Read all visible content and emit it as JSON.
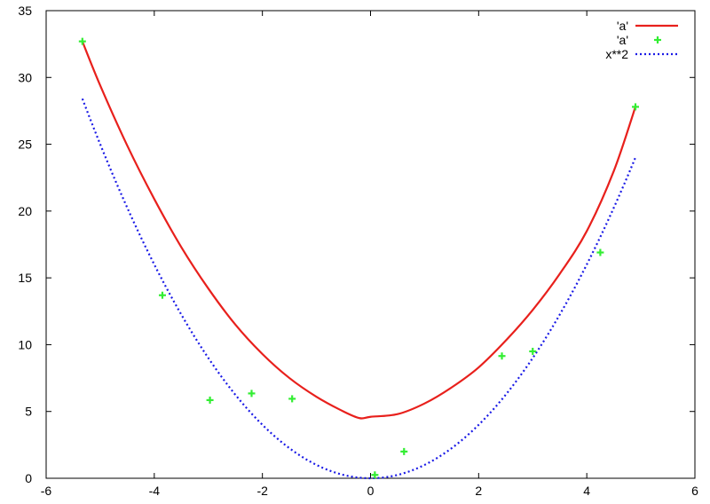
{
  "chart_data": {
    "type": "line",
    "title": "",
    "xlabel": "",
    "ylabel": "",
    "xlim": [
      -6,
      6
    ],
    "ylim": [
      0,
      35
    ],
    "x_ticks": [
      -6,
      -4,
      -2,
      0,
      2,
      4,
      6
    ],
    "y_ticks": [
      0,
      5,
      10,
      15,
      20,
      25,
      30,
      35
    ],
    "grid": false,
    "legend_position": "top-right",
    "series": [
      {
        "name": "'a'",
        "kind": "line",
        "style": "solid",
        "color": "#e8201c",
        "x": [
          -5.33,
          -5.0,
          -4.5,
          -4.0,
          -3.5,
          -3.0,
          -2.5,
          -2.0,
          -1.5,
          -1.0,
          -0.5,
          -0.2,
          0.0,
          0.5,
          1.0,
          1.5,
          2.0,
          2.5,
          3.0,
          3.5,
          4.0,
          4.5,
          4.9
        ],
        "y": [
          32.7,
          29.4,
          24.9,
          20.9,
          17.3,
          14.2,
          11.5,
          9.3,
          7.5,
          6.1,
          5.0,
          4.5,
          4.6,
          4.8,
          5.6,
          6.8,
          8.3,
          10.3,
          12.6,
          15.3,
          18.5,
          23.0,
          27.8
        ]
      },
      {
        "name": "'a'",
        "kind": "points",
        "marker": "plus",
        "color": "#33ee33",
        "x": [
          -5.33,
          -3.85,
          -2.97,
          -2.2,
          -1.45,
          0.08,
          0.62,
          2.43,
          3.0,
          4.25,
          4.9
        ],
        "y": [
          32.7,
          13.7,
          5.85,
          6.35,
          5.95,
          0.25,
          2.0,
          9.15,
          9.5,
          16.9,
          27.8
        ]
      },
      {
        "name": "x**2",
        "kind": "line",
        "style": "dotted",
        "color": "#1a1ae6",
        "function": "x^2",
        "domain": [
          -5.33,
          4.9
        ]
      }
    ]
  }
}
